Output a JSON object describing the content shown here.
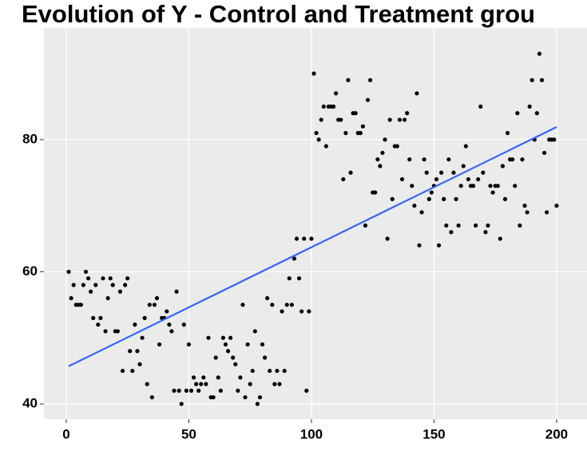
{
  "chart_data": {
    "type": "scatter",
    "title": "Evolution of Y - Control and Treatment grou",
    "xlim": [
      -9.1,
      212.4
    ],
    "xticks": [
      0,
      50,
      100,
      150,
      200
    ],
    "ylim": [
      37.7,
      96.9
    ],
    "yticks": [
      40,
      60,
      80
    ],
    "grid": true,
    "series": [
      {
        "color": "#000000",
        "x": [
          1,
          2,
          3,
          4,
          5,
          6,
          7,
          8,
          9,
          10,
          11,
          12,
          13,
          14,
          15,
          16,
          17,
          18,
          19,
          20,
          21,
          22,
          23,
          24,
          25,
          26,
          27,
          28,
          29,
          30,
          31,
          32,
          33,
          34,
          35,
          36,
          37,
          38,
          39,
          40,
          41,
          42,
          43,
          44,
          45,
          46,
          47,
          48,
          49,
          50,
          51,
          52,
          53,
          54,
          55,
          56,
          57,
          58,
          59,
          60,
          61,
          62,
          63,
          64,
          65,
          66,
          67,
          68,
          69,
          70,
          71,
          72,
          73,
          74,
          75,
          76,
          77,
          78,
          79,
          80,
          81,
          82,
          83,
          84,
          85,
          86,
          87,
          88,
          89,
          90,
          91,
          92,
          93,
          94,
          95,
          96,
          97,
          98,
          99,
          100,
          101,
          102,
          103,
          104,
          105,
          106,
          107,
          108,
          109,
          110,
          111,
          112,
          113,
          114,
          115,
          116,
          117,
          118,
          119,
          120,
          121,
          122,
          123,
          124,
          125,
          126,
          127,
          128,
          129,
          130,
          131,
          132,
          133,
          134,
          135,
          136,
          137,
          138,
          139,
          140,
          141,
          142,
          143,
          144,
          145,
          146,
          147,
          148,
          149,
          150,
          151,
          152,
          153,
          154,
          155,
          156,
          157,
          158,
          159,
          160,
          161,
          162,
          163,
          164,
          165,
          166,
          167,
          168,
          169,
          170,
          171,
          172,
          173,
          174,
          175,
          176,
          177,
          178,
          179,
          180,
          181,
          182,
          183,
          184,
          185,
          186,
          187,
          188,
          189,
          190,
          191,
          192,
          193,
          194,
          195,
          196,
          197,
          198,
          199,
          200
        ],
        "values": [
          60,
          56,
          58,
          55,
          55,
          55,
          58,
          60,
          59,
          57,
          53,
          58,
          52,
          53,
          59,
          51,
          56,
          59,
          58,
          51,
          51,
          57,
          45,
          58,
          59,
          48,
          45,
          52,
          48,
          46,
          50,
          53,
          43,
          55,
          41,
          55,
          56,
          49,
          53,
          53,
          54,
          52,
          51,
          42,
          57,
          42,
          40,
          52,
          42,
          49,
          42,
          44,
          43,
          42,
          43,
          44,
          43,
          50,
          41,
          41,
          47,
          44,
          42,
          50,
          49,
          48,
          50,
          47,
          46,
          42,
          44,
          55,
          41,
          49,
          43,
          45,
          51,
          40,
          41,
          49,
          47,
          56,
          45,
          55,
          43,
          45,
          43,
          54,
          45,
          55,
          59,
          55,
          62,
          65,
          59,
          54,
          65,
          42,
          54,
          65,
          90,
          81,
          80,
          83,
          85,
          79,
          85,
          85,
          85,
          87,
          83,
          83,
          74,
          81,
          89,
          75,
          84,
          84,
          81,
          81,
          82,
          67,
          86,
          89,
          72,
          72,
          77,
          76,
          78,
          80,
          65,
          83,
          71,
          79,
          79,
          83,
          74,
          83,
          84,
          77,
          73,
          70,
          87,
          64,
          69,
          77,
          75,
          71,
          72,
          73,
          74,
          64,
          75,
          71,
          67,
          77,
          66,
          75,
          71,
          67,
          73,
          76,
          79,
          74,
          73,
          73,
          67,
          74,
          85,
          75,
          66,
          67,
          73,
          72,
          73,
          73,
          65,
          76,
          71,
          81,
          77,
          77,
          73,
          84,
          67,
          77,
          70,
          69,
          85,
          89,
          80,
          84,
          93,
          89,
          78,
          69,
          80,
          80,
          80,
          70
        ]
      },
      {
        "type": "line",
        "color": "#3366ff",
        "x": [
          1,
          200
        ],
        "values": [
          45.7,
          81.9
        ]
      }
    ]
  }
}
